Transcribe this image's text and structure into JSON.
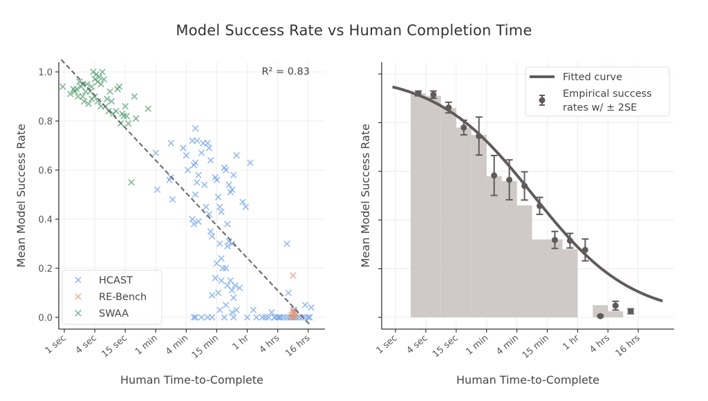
{
  "title": "Model Success Rate vs Human Completion Time",
  "chart_data": [
    {
      "type": "scatter",
      "panel": "left",
      "title": "",
      "xlabel": "Human Time-to-Complete",
      "ylabel": "Mean Model Success Rate",
      "x_scale": "log4",
      "x_unit": "seconds",
      "x_ticks": [
        1,
        4,
        15,
        60,
        240,
        900,
        3600,
        14400,
        57600
      ],
      "x_tick_labels": [
        "1 sec",
        "4 sec",
        "15 sec",
        "1 min",
        "4 min",
        "15 min",
        "1 hr",
        "4 hrs",
        "16 hrs"
      ],
      "y_ticks": [
        0.0,
        0.2,
        0.4,
        0.6,
        0.8,
        1.0
      ],
      "y_tick_labels": [
        "0.0",
        "0.2",
        "0.4",
        "0.6",
        "0.8",
        "1.0"
      ],
      "ylim": [
        -0.03,
        1.04
      ],
      "grid": true,
      "legend_position": "bottom-left",
      "annotation": "R² = 0.83",
      "trend_line": {
        "x_log4_start": -0.1,
        "y_start": 1.05,
        "x_log4_end": 8.05,
        "y_end": -0.03,
        "style": "dashed"
      },
      "series": [
        {
          "name": "SWAA",
          "color": "#4c9a6a",
          "marker": "x",
          "points_log4": [
            [
              -0.05,
              0.94
            ],
            [
              0.2,
              0.91
            ],
            [
              0.3,
              0.93
            ],
            [
              0.35,
              0.92
            ],
            [
              0.4,
              0.93
            ],
            [
              0.5,
              0.96
            ],
            [
              0.55,
              0.94
            ],
            [
              0.6,
              0.9
            ],
            [
              0.65,
              0.88
            ],
            [
              0.7,
              0.92
            ],
            [
              0.75,
              0.95
            ],
            [
              0.8,
              0.87
            ],
            [
              0.85,
              0.92
            ],
            [
              0.9,
              0.89
            ],
            [
              0.95,
              1.0
            ],
            [
              1.0,
              0.97
            ],
            [
              1.05,
              0.99
            ],
            [
              1.1,
              0.96
            ],
            [
              1.15,
              0.98
            ],
            [
              1.2,
              0.95
            ],
            [
              1.25,
              1.0
            ],
            [
              1.3,
              0.97
            ],
            [
              1.35,
              0.86
            ],
            [
              1.4,
              0.89
            ],
            [
              1.45,
              0.84
            ],
            [
              1.5,
              0.92
            ],
            [
              1.55,
              0.88
            ],
            [
              1.6,
              0.83
            ],
            [
              1.7,
              0.84
            ],
            [
              1.75,
              0.93
            ],
            [
              1.8,
              0.94
            ],
            [
              1.85,
              0.79
            ],
            [
              1.9,
              0.83
            ],
            [
              1.95,
              0.82
            ],
            [
              2.0,
              0.86
            ],
            [
              2.05,
              0.82
            ],
            [
              2.1,
              0.79
            ],
            [
              2.3,
              0.9
            ],
            [
              2.35,
              0.81
            ],
            [
              2.2,
              0.55
            ],
            [
              2.75,
              0.85
            ],
            [
              1.0,
              0.9
            ],
            [
              0.9,
              0.94
            ],
            [
              0.6,
              0.95
            ],
            [
              1.2,
              0.86
            ],
            [
              0.45,
              0.9
            ],
            [
              1.1,
              0.88
            ]
          ]
        },
        {
          "name": "HCAST",
          "color": "#6a9ee8",
          "marker": "x",
          "points_log4": [
            [
              3.0,
              0.67
            ],
            [
              3.05,
              0.52
            ],
            [
              3.5,
              0.71
            ],
            [
              3.45,
              0.56
            ],
            [
              3.5,
              0.57
            ],
            [
              3.55,
              0.48
            ],
            [
              3.9,
              0.69
            ],
            [
              4.0,
              0.66
            ],
            [
              4.05,
              0.6
            ],
            [
              4.2,
              0.72
            ],
            [
              4.3,
              0.77
            ],
            [
              4.35,
              0.72
            ],
            [
              4.25,
              0.62
            ],
            [
              4.3,
              0.63
            ],
            [
              4.35,
              0.55
            ],
            [
              4.4,
              0.58
            ],
            [
              4.2,
              0.4
            ],
            [
              4.25,
              0.38
            ],
            [
              4.3,
              0.5
            ],
            [
              4.4,
              0.39
            ],
            [
              4.5,
              0.67
            ],
            [
              4.55,
              0.71
            ],
            [
              4.6,
              0.54
            ],
            [
              4.7,
              0.71
            ],
            [
              4.75,
              0.69
            ],
            [
              4.8,
              0.64
            ],
            [
              4.65,
              0.45
            ],
            [
              4.75,
              0.42
            ],
            [
              4.8,
              0.35
            ],
            [
              4.85,
              0.33
            ],
            [
              4.95,
              0.57
            ],
            [
              5.0,
              0.56
            ],
            [
              5.05,
              0.49
            ],
            [
              5.1,
              0.45
            ],
            [
              5.15,
              0.43
            ],
            [
              5.25,
              0.61
            ],
            [
              5.3,
              0.6
            ],
            [
              5.4,
              0.54
            ],
            [
              5.45,
              0.51
            ],
            [
              5.5,
              0.52
            ],
            [
              5.55,
              0.58
            ],
            [
              5.65,
              0.66
            ],
            [
              5.35,
              0.38
            ],
            [
              5.1,
              0.3
            ],
            [
              5.15,
              0.24
            ],
            [
              5.2,
              0.2
            ],
            [
              5.35,
              0.29
            ],
            [
              5.4,
              0.31
            ],
            [
              5.5,
              0.3
            ],
            [
              5.0,
              0.22
            ],
            [
              4.95,
              0.16
            ],
            [
              4.85,
              0.09
            ],
            [
              5.05,
              0.1
            ],
            [
              5.15,
              0.15
            ],
            [
              5.3,
              0.2
            ],
            [
              5.35,
              0.13
            ],
            [
              5.45,
              0.15
            ],
            [
              5.5,
              0.11
            ],
            [
              5.55,
              0.08
            ],
            [
              5.6,
              0.13
            ],
            [
              5.75,
              0.12
            ],
            [
              5.85,
              0.47
            ],
            [
              5.95,
              0.45
            ],
            [
              6.1,
              0.63
            ],
            [
              5.1,
              0.03
            ],
            [
              5.3,
              0.05
            ],
            [
              5.5,
              0.02
            ],
            [
              5.65,
              0.03
            ],
            [
              4.85,
              0.0
            ],
            [
              4.7,
              0.0
            ],
            [
              4.5,
              0.0
            ],
            [
              4.3,
              0.0
            ],
            [
              4.25,
              0.0
            ],
            [
              5.25,
              0.0
            ],
            [
              5.55,
              0.0
            ],
            [
              6.0,
              0.0
            ],
            [
              6.5,
              0.0
            ],
            [
              6.6,
              0.0
            ],
            [
              6.7,
              0.0
            ],
            [
              6.8,
              0.02
            ],
            [
              6.9,
              0.0
            ],
            [
              7.0,
              0.0
            ],
            [
              7.05,
              0.0
            ],
            [
              7.1,
              0.0
            ],
            [
              7.2,
              0.0
            ],
            [
              7.3,
              0.0
            ],
            [
              7.4,
              0.0
            ],
            [
              7.5,
              0.0
            ],
            [
              7.6,
              0.0
            ],
            [
              7.7,
              0.0
            ],
            [
              7.8,
              0.0
            ],
            [
              7.9,
              0.0
            ],
            [
              8.0,
              0.0
            ],
            [
              8.05,
              0.0
            ],
            [
              7.3,
              0.3
            ],
            [
              7.35,
              0.1
            ],
            [
              7.55,
              0.03
            ],
            [
              7.9,
              0.05
            ],
            [
              8.1,
              0.04
            ],
            [
              6.9,
              0.0
            ],
            [
              6.3,
              0.0
            ],
            [
              6.2,
              0.03
            ]
          ]
        },
        {
          "name": "RE-Bench",
          "color": "#e8916a",
          "marker": "x",
          "points_log4": [
            [
              7.5,
              0.17
            ],
            [
              7.45,
              0.01
            ],
            [
              7.5,
              0.02
            ],
            [
              7.55,
              0.0
            ],
            [
              7.45,
              0.0
            ],
            [
              7.5,
              0.03
            ],
            [
              7.6,
              0.01
            ],
            [
              7.55,
              0.02
            ]
          ]
        }
      ]
    },
    {
      "type": "line",
      "panel": "right",
      "title": "",
      "xlabel": "Human Time-to-Complete",
      "ylabel": "Mean Model Success Rate",
      "x_scale": "log4",
      "x_unit": "seconds",
      "x_ticks": [
        1,
        4,
        15,
        60,
        240,
        900,
        3600,
        14400,
        57600
      ],
      "x_tick_labels": [
        "1 sec",
        "4 sec",
        "15 sec",
        "1 min",
        "4 min",
        "15 min",
        "1 hr",
        "4 hrs",
        "16 hrs"
      ],
      "y_ticks": [
        0.0,
        0.2,
        0.4,
        0.6,
        0.8,
        1.0
      ],
      "ylim": [
        -0.04,
        1.04
      ],
      "grid": true,
      "legend_position": "top-right",
      "legend": [
        "Fitted curve",
        "Empirical success rates w/ ± 2SE"
      ],
      "fitted_curve": {
        "x_log4_range": [
          -0.1,
          8.8
        ],
        "color": "#5f5b5a"
      },
      "histogram_color": "#cfcac7",
      "bins": [
        {
          "x0": 0.5,
          "x1": 1.0,
          "height": 0.92
        },
        {
          "x0": 1.0,
          "x1": 1.5,
          "height": 0.91
        },
        {
          "x0": 1.5,
          "x1": 2.0,
          "height": 0.86
        },
        {
          "x0": 2.0,
          "x1": 2.5,
          "height": 0.78
        },
        {
          "x0": 2.5,
          "x1": 3.0,
          "height": 0.75
        },
        {
          "x0": 3.0,
          "x1": 3.5,
          "height": 0.58
        },
        {
          "x0": 3.5,
          "x1": 4.0,
          "height": 0.56
        },
        {
          "x0": 4.0,
          "x1": 4.5,
          "height": 0.46
        },
        {
          "x0": 4.5,
          "x1": 5.0,
          "height": 0.32
        },
        {
          "x0": 5.0,
          "x1": 5.5,
          "height": 0.32
        },
        {
          "x0": 5.5,
          "x1": 6.0,
          "height": 0.28
        },
        {
          "x0": 6.0,
          "x1": 6.5,
          "height": 0.0
        },
        {
          "x0": 6.5,
          "x1": 7.0,
          "height": 0.05
        },
        {
          "x0": 7.0,
          "x1": 7.5,
          "height": 0.025
        }
      ],
      "empirical_points": [
        {
          "x": 0.75,
          "y": 0.92,
          "err": 0.01
        },
        {
          "x": 1.25,
          "y": 0.915,
          "err": 0.015
        },
        {
          "x": 1.75,
          "y": 0.862,
          "err": 0.022
        },
        {
          "x": 2.25,
          "y": 0.78,
          "err": 0.03
        },
        {
          "x": 2.75,
          "y": 0.745,
          "err": 0.078
        },
        {
          "x": 3.25,
          "y": 0.583,
          "err": 0.082
        },
        {
          "x": 3.75,
          "y": 0.565,
          "err": 0.082
        },
        {
          "x": 4.25,
          "y": 0.54,
          "err": 0.058
        },
        {
          "x": 4.75,
          "y": 0.458,
          "err": 0.035
        },
        {
          "x": 5.25,
          "y": 0.318,
          "err": 0.035
        },
        {
          "x": 5.75,
          "y": 0.315,
          "err": 0.03
        },
        {
          "x": 6.25,
          "y": 0.277,
          "err": 0.045
        },
        {
          "x": 6.75,
          "y": 0.005,
          "err": 0.004
        },
        {
          "x": 7.25,
          "y": 0.048,
          "err": 0.018
        },
        {
          "x": 7.75,
          "y": 0.025,
          "err": 0.01
        }
      ]
    }
  ]
}
